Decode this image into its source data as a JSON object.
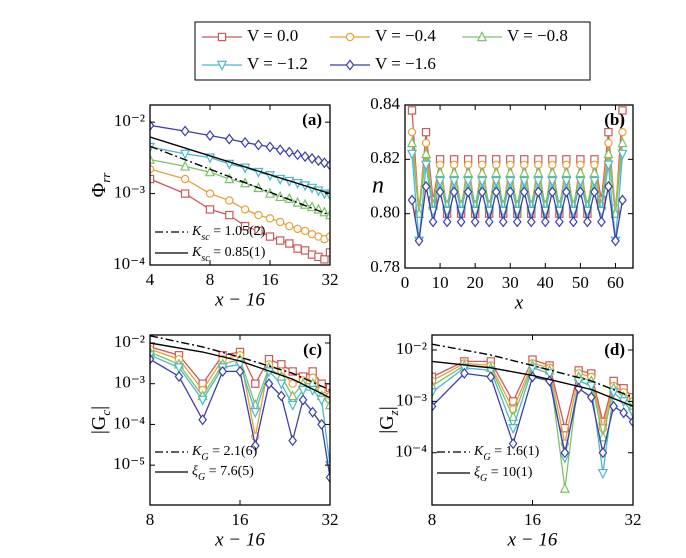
{
  "chart_data": [
    {
      "type": "line",
      "panel_label": "(a)",
      "xlabel": "x − 16",
      "ylabel": {
        "main": "Φ",
        "sub": "rr"
      },
      "xlog": true,
      "ylog": true,
      "xlim": [
        4,
        32
      ],
      "ylim": [
        0.0001,
        0.0174
      ],
      "xticks": [
        4,
        8,
        16,
        32
      ],
      "yticks": [
        {
          "value": 0.0001,
          "label": "10⁻⁴"
        },
        {
          "value": 0.001,
          "label": "10⁻³"
        },
        {
          "value": 0.01,
          "label": "10⁻²"
        }
      ],
      "x": [
        4,
        6,
        8,
        10,
        12,
        14,
        16,
        18,
        20,
        22,
        24,
        26,
        28,
        30,
        32
      ],
      "series": [
        {
          "name": "V =   0.0",
          "color": "#cc5a5a",
          "marker": "square",
          "values": [
            0.0016,
            0.001,
            0.0006,
            0.0005,
            0.00035,
            0.0003,
            0.00025,
            0.00022,
            0.0002,
            0.00017,
            0.00016,
            0.00014,
            0.00013,
            0.00012,
            0.00015
          ]
        },
        {
          "name": "V = −0.4",
          "color": "#e8a13a",
          "marker": "circle",
          "values": [
            0.0022,
            0.0016,
            0.001,
            0.0008,
            0.0006,
            0.0005,
            0.00045,
            0.0004,
            0.00035,
            0.00032,
            0.0003,
            0.00027,
            0.00025,
            0.00023,
            0.00025
          ]
        },
        {
          "name": "V = −0.8",
          "color": "#7cc26a",
          "marker": "triangle-up",
          "values": [
            0.003,
            0.0024,
            0.002,
            0.0016,
            0.0014,
            0.0012,
            0.001,
            0.0009,
            0.00085,
            0.00075,
            0.0007,
            0.00065,
            0.0006,
            0.00055,
            0.0005
          ]
        },
        {
          "name": "V = −1.2",
          "color": "#4fb6cc",
          "marker": "triangle-down",
          "values": [
            0.0045,
            0.0036,
            0.0032,
            0.0026,
            0.0023,
            0.002,
            0.0018,
            0.0016,
            0.0015,
            0.0014,
            0.0013,
            0.0012,
            0.0011,
            0.001,
            0.00095
          ]
        },
        {
          "name": "V = −1.6",
          "color": "#3b3fa8",
          "marker": "diamond",
          "values": [
            0.009,
            0.0075,
            0.0065,
            0.0058,
            0.0052,
            0.0048,
            0.0045,
            0.0041,
            0.0038,
            0.0035,
            0.0033,
            0.0031,
            0.0029,
            0.0027,
            0.0025
          ]
        }
      ],
      "fits": [
        {
          "symbol": "K",
          "subscript": "sc",
          "text": " = 1.05(2)",
          "dash": "dashdot",
          "x": [
            4,
            32
          ],
          "values": [
            0.0046,
            0.0005
          ]
        },
        {
          "symbol": "K",
          "subscript": "sc",
          "text": " = 0.85(1)",
          "dash": "solid",
          "x": [
            4,
            32
          ],
          "values": [
            0.0062,
            0.001
          ]
        }
      ]
    },
    {
      "type": "line",
      "panel_label": "(b)",
      "xlabel": "x",
      "ylabel": "n",
      "xlim": [
        0,
        65
      ],
      "ylim": [
        0.78,
        0.84
      ],
      "xticks": [
        0,
        10,
        20,
        30,
        40,
        50,
        60
      ],
      "yticks": [
        {
          "value": 0.78,
          "label": "0.78"
        },
        {
          "value": 0.8,
          "label": "0.80"
        },
        {
          "value": 0.82,
          "label": "0.82"
        },
        {
          "value": 0.84,
          "label": "0.84"
        }
      ],
      "x": [
        2,
        4,
        6,
        8,
        10,
        12,
        14,
        16,
        18,
        20,
        22,
        24,
        26,
        28,
        30,
        32,
        34,
        36,
        38,
        40,
        42,
        44,
        46,
        48,
        50,
        52,
        54,
        56,
        58,
        60,
        62
      ],
      "series": [
        {
          "color": "#cc5a5a",
          "marker": "square",
          "values": [
            0.838,
            0.8,
            0.83,
            0.805,
            0.82,
            0.8,
            0.82,
            0.8,
            0.82,
            0.8,
            0.82,
            0.8,
            0.82,
            0.8,
            0.82,
            0.8,
            0.82,
            0.8,
            0.82,
            0.8,
            0.82,
            0.8,
            0.82,
            0.8,
            0.82,
            0.8,
            0.82,
            0.805,
            0.83,
            0.8,
            0.838
          ]
        },
        {
          "color": "#e8a13a",
          "marker": "circle",
          "values": [
            0.83,
            0.802,
            0.826,
            0.803,
            0.818,
            0.802,
            0.818,
            0.802,
            0.818,
            0.802,
            0.818,
            0.802,
            0.818,
            0.802,
            0.818,
            0.802,
            0.818,
            0.802,
            0.818,
            0.802,
            0.818,
            0.802,
            0.818,
            0.802,
            0.818,
            0.802,
            0.818,
            0.803,
            0.826,
            0.802,
            0.83
          ]
        },
        {
          "color": "#7cc26a",
          "marker": "triangle-up",
          "values": [
            0.826,
            0.8,
            0.822,
            0.803,
            0.815,
            0.803,
            0.815,
            0.803,
            0.815,
            0.803,
            0.815,
            0.803,
            0.815,
            0.803,
            0.815,
            0.803,
            0.815,
            0.803,
            0.815,
            0.803,
            0.815,
            0.803,
            0.815,
            0.803,
            0.815,
            0.803,
            0.815,
            0.803,
            0.822,
            0.8,
            0.826
          ]
        },
        {
          "color": "#4fb6cc",
          "marker": "triangle-down",
          "values": [
            0.822,
            0.79,
            0.818,
            0.801,
            0.812,
            0.801,
            0.812,
            0.801,
            0.812,
            0.801,
            0.812,
            0.801,
            0.812,
            0.801,
            0.812,
            0.801,
            0.812,
            0.801,
            0.812,
            0.801,
            0.812,
            0.801,
            0.812,
            0.801,
            0.812,
            0.801,
            0.812,
            0.801,
            0.818,
            0.79,
            0.822
          ]
        },
        {
          "color": "#3b3fa8",
          "marker": "diamond",
          "values": [
            0.805,
            0.79,
            0.81,
            0.797,
            0.808,
            0.797,
            0.808,
            0.797,
            0.808,
            0.797,
            0.808,
            0.797,
            0.808,
            0.797,
            0.808,
            0.797,
            0.808,
            0.797,
            0.808,
            0.797,
            0.808,
            0.797,
            0.808,
            0.797,
            0.808,
            0.797,
            0.808,
            0.797,
            0.81,
            0.79,
            0.805
          ]
        }
      ]
    },
    {
      "type": "line",
      "panel_label": "(c)",
      "xlabel": "x − 16",
      "ylabel": {
        "main": "|G",
        "sub": "c",
        "post": "|"
      },
      "xlog": true,
      "ylog": true,
      "xlim": [
        8,
        32
      ],
      "ylim": [
        1.05e-06,
        0.0157
      ],
      "xticks": [
        8,
        16,
        32
      ],
      "yticks": [
        {
          "value": 1e-05,
          "label": "10⁻⁵"
        },
        {
          "value": 0.0001,
          "label": "10⁻⁴"
        },
        {
          "value": 0.001,
          "label": "10⁻³"
        },
        {
          "value": 0.01,
          "label": "10⁻²"
        }
      ],
      "x": [
        8,
        10,
        12,
        14,
        16,
        18,
        20,
        22,
        24,
        26,
        28,
        30,
        32
      ],
      "series": [
        {
          "color": "#cc5a5a",
          "marker": "square",
          "values": [
            0.008,
            0.005,
            0.001,
            0.005,
            0.006,
            0.001,
            0.004,
            0.003,
            0.002,
            0.0015,
            0.002,
            0.001,
            0.0008
          ]
        },
        {
          "color": "#e8a13a",
          "marker": "circle",
          "values": [
            0.007,
            0.004,
            0.0007,
            0.004,
            0.005,
            5e-05,
            0.003,
            0.002,
            0.001,
            0.0012,
            0.0014,
            0.0007,
            0.0005
          ]
        },
        {
          "color": "#7cc26a",
          "marker": "triangle-up",
          "values": [
            0.006,
            0.003,
            0.0005,
            0.003,
            0.004,
            0.0003,
            0.0025,
            0.0015,
            0.0005,
            0.001,
            0.001,
            0.0005,
            0.0003
          ]
        },
        {
          "color": "#4fb6cc",
          "marker": "triangle-down",
          "values": [
            0.005,
            0.0025,
            0.0004,
            0.0025,
            0.003,
            0.0002,
            0.002,
            0.001,
            0.0003,
            0.0007,
            0.0007,
            0.0004,
            1e-05
          ]
        },
        {
          "color": "#3b3fa8",
          "marker": "diamond",
          "values": [
            0.004,
            0.0015,
            0.00013,
            0.002,
            0.002,
            3e-05,
            0.001,
            0.0005,
            4e-05,
            0.0004,
            0.0002,
            0.0001,
            5e-06
          ]
        }
      ],
      "fits": [
        {
          "symbol": "K",
          "subscript": "G",
          "text": " = 2.1(6)",
          "dash": "dashdot",
          "x": [
            8,
            12,
            16,
            24,
            32
          ],
          "values": [
            0.015,
            0.008,
            0.0045,
            0.0018,
            0.0007
          ]
        },
        {
          "symbol": "ξ",
          "subscript": "G",
          "text": " = 7.6(5)",
          "dash": "solid",
          "x": [
            8,
            12,
            16,
            24,
            32
          ],
          "values": [
            0.01,
            0.006,
            0.0036,
            0.0013,
            0.00045
          ]
        }
      ]
    },
    {
      "type": "line",
      "panel_label": "(d)",
      "xlabel": "x − 16",
      "ylabel": {
        "main": "|G",
        "sub": "z",
        "post": "|"
      },
      "xlog": true,
      "ylog": true,
      "xlim": [
        8,
        32
      ],
      "ylim": [
        9.6e-06,
        0.0196
      ],
      "xticks": [
        8,
        16,
        32
      ],
      "yticks": [
        {
          "value": 0.0001,
          "label": "10⁻⁴"
        },
        {
          "value": 0.001,
          "label": "10⁻³"
        },
        {
          "value": 0.01,
          "label": "10⁻²"
        }
      ],
      "x": [
        8,
        10,
        12,
        14,
        16,
        18,
        20,
        22,
        24,
        26,
        28,
        30,
        32
      ],
      "series": [
        {
          "color": "#cc5a5a",
          "marker": "square",
          "values": [
            0.003,
            0.006,
            0.006,
            0.001,
            0.0065,
            0.005,
            0.0003,
            0.004,
            0.0035,
            0.0004,
            0.0025,
            0.0018,
            0.0012
          ]
        },
        {
          "color": "#e8a13a",
          "marker": "circle",
          "values": [
            0.0025,
            0.0055,
            0.005,
            0.0007,
            0.0055,
            0.0045,
            0.00015,
            0.0035,
            0.003,
            0.0003,
            0.002,
            0.0015,
            0.001
          ]
        },
        {
          "color": "#7cc26a",
          "marker": "triangle-up",
          "values": [
            0.002,
            0.005,
            0.0045,
            0.0005,
            0.005,
            0.004,
            2e-05,
            0.003,
            0.0025,
            0.0002,
            0.0018,
            0.0012,
            0.0008
          ]
        },
        {
          "color": "#4fb6cc",
          "marker": "triangle-down",
          "values": [
            0.0015,
            0.0045,
            0.004,
            0.0003,
            0.0045,
            0.0035,
            8e-05,
            0.0025,
            0.002,
            4e-05,
            0.0015,
            0.001,
            0.0006
          ]
        },
        {
          "color": "#3b3fa8",
          "marker": "diamond",
          "values": [
            0.0008,
            0.0035,
            0.003,
            0.00015,
            0.003,
            0.0025,
            0.0001,
            0.0018,
            0.0012,
            0.0001,
            0.0008,
            0.0006,
            0.0004
          ]
        }
      ],
      "fits": [
        {
          "symbol": "K",
          "subscript": "G",
          "text": " = 1.6(1)",
          "dash": "dashdot",
          "x": [
            8,
            12,
            16,
            24,
            32
          ],
          "values": [
            0.013,
            0.008,
            0.005,
            0.0025,
            0.0012
          ]
        },
        {
          "symbol": "ξ",
          "subscript": "G",
          "text": " = 10(1)",
          "dash": "solid",
          "x": [
            8,
            12,
            16,
            24,
            32
          ],
          "values": [
            0.006,
            0.0045,
            0.0032,
            0.0017,
            0.0008
          ]
        }
      ]
    }
  ]
}
